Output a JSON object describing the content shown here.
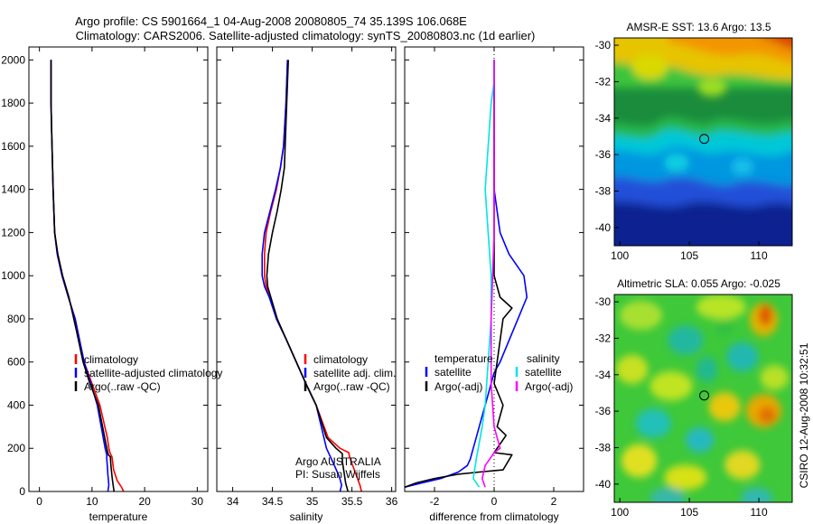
{
  "header": {
    "line1": "Argo profile: CS 5901664_1 04-Aug-2008 20080805_74 35.139S 106.068E",
    "line2": "Climatology: CARS2006. Satellite-adjusted climatology: synTS_20080803.nc (1d earlier)"
  },
  "credit": "CSIRO 12-Aug-2008 10:32:51",
  "colors": {
    "red": "#ff0000",
    "blue": "#0000ff",
    "black": "#000000",
    "cyan": "#00e5e5",
    "magenta": "#ff00ff"
  },
  "chart_data": [
    {
      "id": "temperature",
      "type": "line",
      "xlabel": "temperature",
      "ylabel": "",
      "xlim": [
        -2,
        32
      ],
      "ylim": [
        2060,
        0
      ],
      "xticks": [
        0,
        10,
        20,
        30
      ],
      "yticks": [
        0,
        200,
        400,
        600,
        800,
        1000,
        1200,
        1400,
        1600,
        1800,
        2000
      ],
      "legend": [
        "climatology",
        "satellite-adjusted climatology",
        "Argo(..raw -QC)"
      ],
      "series": [
        {
          "name": "climatology",
          "color": "red",
          "x": [
            16.0,
            15.6,
            14.8,
            14.1,
            13.9,
            13.8,
            13.6,
            13.4,
            13.2,
            12.9,
            11.5,
            10.0,
            8.5,
            6.8,
            5.5,
            4.3,
            3.4,
            2.9,
            2.6,
            2.5,
            2.4,
            2.3,
            2.2,
            2.2
          ],
          "y": [
            0,
            20,
            50,
            100,
            140,
            160,
            170,
            180,
            200,
            250,
            400,
            500,
            600,
            800,
            900,
            1000,
            1100,
            1200,
            1400,
            1500,
            1600,
            1700,
            1800,
            2000
          ]
        },
        {
          "name": "satellite-adjusted climatology",
          "color": "blue",
          "x": [
            13.0,
            13.2,
            13.0,
            12.9,
            12.8,
            12.8,
            12.5,
            11.0,
            9.8,
            8.5,
            6.8,
            5.5,
            4.3,
            3.4,
            2.9,
            2.6,
            2.5,
            2.4,
            2.3,
            2.2,
            2.2
          ],
          "y": [
            0,
            30,
            80,
            120,
            150,
            170,
            200,
            400,
            500,
            600,
            800,
            900,
            1000,
            1100,
            1200,
            1400,
            1500,
            1600,
            1700,
            1800,
            2000
          ]
        },
        {
          "name": "Argo(..raw -QC)",
          "color": "black",
          "x": [
            14.2,
            14.0,
            13.8,
            13.6,
            13.5,
            13.5,
            13.1,
            12.8,
            11.2,
            9.6,
            8.3,
            7.0,
            5.6,
            4.4,
            3.5,
            2.9,
            2.6,
            2.5,
            2.4,
            2.3,
            2.2,
            2.2
          ],
          "y": [
            0,
            30,
            70,
            120,
            150,
            160,
            170,
            200,
            400,
            500,
            600,
            750,
            900,
            1000,
            1100,
            1200,
            1400,
            1500,
            1600,
            1700,
            1800,
            2000
          ]
        }
      ]
    },
    {
      "id": "salinity",
      "type": "line",
      "xlabel": "salinity",
      "ylabel": "",
      "xlim": [
        33.8,
        36.05
      ],
      "ylim": [
        2060,
        0
      ],
      "xticks": [
        34,
        34.5,
        35,
        35.5,
        36
      ],
      "legend": [
        "climatology",
        "satellite adj. clim.",
        "Argo(..raw -QC)"
      ],
      "annotation": [
        "Argo AUSTRALIA",
        "PI: Susan Wijffels"
      ],
      "series": [
        {
          "name": "climatology",
          "color": "red",
          "x": [
            35.62,
            35.6,
            35.55,
            35.5,
            35.47,
            35.46,
            35.35,
            35.2,
            35.05,
            34.92,
            34.8,
            34.68,
            34.55,
            34.47,
            34.42,
            34.4,
            34.4,
            34.42,
            34.48,
            34.55,
            34.6,
            34.64,
            34.67,
            34.69
          ],
          "y": [
            0,
            30,
            80,
            130,
            160,
            180,
            200,
            250,
            400,
            500,
            600,
            700,
            800,
            900,
            950,
            1000,
            1100,
            1200,
            1300,
            1400,
            1500,
            1600,
            1800,
            2000
          ]
        },
        {
          "name": "satellite adj. clim.",
          "color": "blue",
          "x": [
            35.35,
            35.37,
            35.34,
            35.28,
            35.18,
            35.05,
            34.92,
            34.8,
            34.68,
            34.55,
            34.46,
            34.4,
            34.37,
            34.37,
            34.4,
            34.47,
            34.54,
            34.6,
            34.64,
            34.67,
            34.69
          ],
          "y": [
            0,
            30,
            70,
            120,
            200,
            400,
            500,
            600,
            700,
            800,
            900,
            950,
            1000,
            1100,
            1200,
            1300,
            1400,
            1500,
            1600,
            1800,
            2000
          ]
        },
        {
          "name": "Argo(..raw -QC)",
          "color": "black",
          "x": [
            35.45,
            35.42,
            35.4,
            35.38,
            35.38,
            35.3,
            35.18,
            35.05,
            34.92,
            34.8,
            34.68,
            34.56,
            34.48,
            34.44,
            34.43,
            34.45,
            34.5,
            34.56,
            34.61,
            34.65,
            34.68,
            34.7
          ],
          "y": [
            0,
            40,
            90,
            140,
            175,
            200,
            250,
            400,
            500,
            600,
            700,
            800,
            900,
            950,
            1000,
            1100,
            1200,
            1300,
            1400,
            1500,
            1800,
            2000
          ]
        }
      ]
    },
    {
      "id": "difference",
      "type": "line",
      "xlabel": "difference from climatology",
      "ylabel": "",
      "xlim": [
        -3.0,
        3.0
      ],
      "ylim": [
        2060,
        0
      ],
      "xticks": [
        -2,
        0,
        2
      ],
      "legend_left_title": "temperature",
      "legend_right_title": "salinity",
      "legend": [
        "satellite",
        "Argo(-adj)",
        "satellite",
        "Argo(-adj)"
      ],
      "series": [
        {
          "name": "satellite",
          "group": "temperature",
          "color": "blue",
          "x": [
            -3.0,
            -2.4,
            -1.8,
            -1.2,
            -0.9,
            -0.8,
            -0.7,
            -0.5,
            -0.3,
            -0.1,
            0.0,
            0.2,
            0.5,
            0.8,
            1.1,
            1.0,
            0.5,
            0.2,
            0.0,
            0.0,
            0.0,
            0.0
          ],
          "y": [
            20,
            40,
            60,
            90,
            120,
            150,
            200,
            300,
            400,
            500,
            550,
            600,
            700,
            800,
            900,
            1000,
            1100,
            1200,
            1400,
            1600,
            1800,
            2000
          ]
        },
        {
          "name": "Argo(-adj)",
          "group": "temperature",
          "color": "black",
          "x": [
            -3.0,
            -2.6,
            -2.0,
            -1.2,
            -0.5,
            0.3,
            0.6,
            0.0,
            0.4,
            0.1,
            0.3,
            0.0,
            0.1,
            0.2,
            0.3,
            0.6,
            0.2,
            0.0,
            0.0,
            0.0,
            0.0
          ],
          "y": [
            20,
            40,
            60,
            80,
            90,
            100,
            170,
            180,
            260,
            300,
            400,
            500,
            600,
            700,
            800,
            850,
            900,
            1000,
            1200,
            1600,
            2000
          ]
        },
        {
          "name": "satellite",
          "group": "salinity",
          "color": "cyan",
          "x": [
            -0.5,
            -0.7,
            -0.6,
            -0.4,
            -0.3,
            -0.2,
            -0.1,
            -0.1,
            -0.2,
            -0.3,
            -0.2,
            -0.1,
            0.0,
            0.0
          ],
          "y": [
            20,
            60,
            150,
            300,
            400,
            600,
            800,
            1000,
            1200,
            1400,
            1600,
            1800,
            1900,
            2000
          ]
        },
        {
          "name": "Argo(-adj)",
          "group": "salinity",
          "color": "magenta",
          "x": [
            -0.3,
            -0.4,
            -0.3,
            -0.1,
            0.0,
            0.2,
            0.0,
            -0.1,
            -0.1,
            0.0,
            0.0
          ],
          "y": [
            20,
            60,
            120,
            160,
            180,
            200,
            300,
            500,
            800,
            1200,
            2000
          ]
        }
      ]
    },
    {
      "id": "sst-map",
      "type": "heatmap",
      "title": "AMSR-E SST: 13.6 Argo: 13.5",
      "xlim": [
        99.6,
        112.4
      ],
      "ylim": [
        -41.0,
        -29.6
      ],
      "xticks": [
        100,
        105,
        110
      ],
      "yticks": [
        -30,
        -32,
        -34,
        -36,
        -38,
        -40
      ],
      "marker": {
        "lon": 106.068,
        "lat": -35.139
      }
    },
    {
      "id": "sla-map",
      "type": "heatmap",
      "title": "Altimetric SLA: 0.055 Argo: -0.025",
      "xlim": [
        99.6,
        112.4
      ],
      "ylim": [
        -41.0,
        -29.6
      ],
      "xticks": [
        100,
        105,
        110
      ],
      "yticks": [
        -30,
        -32,
        -34,
        -36,
        -38,
        -40
      ],
      "marker": {
        "lon": 106.068,
        "lat": -35.139
      }
    }
  ]
}
